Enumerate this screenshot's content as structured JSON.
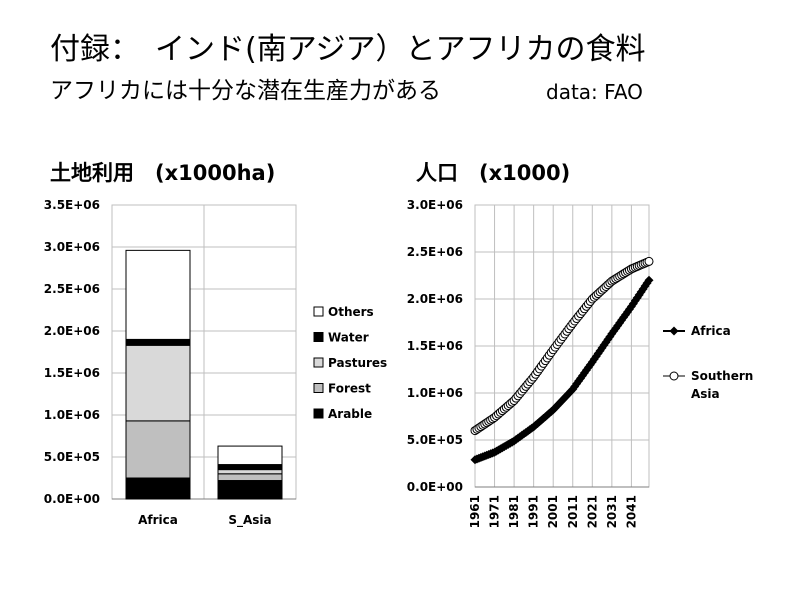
{
  "slide": {
    "title": "付録：　インド(南アジア）とアフリカの食料",
    "subtitle": "アフリカには十分な潜在生産力がある",
    "source": "data:  FAO"
  },
  "chart_data": [
    {
      "type": "bar",
      "stacked": true,
      "title": "土地利用　(x1000ha)",
      "categories": [
        "Africa",
        "S_Asia"
      ],
      "ylim": [
        0,
        3500000
      ],
      "yticks": [
        "0.0E+00",
        "5.0E+05",
        "1.0E+06",
        "1.5E+06",
        "2.0E+06",
        "2.5E+06",
        "3.0E+06",
        "3.5E+06"
      ],
      "grid": true,
      "legend_position": "right",
      "series": [
        {
          "name": "Arable",
          "color": "#000000",
          "values": [
            250000,
            220000
          ]
        },
        {
          "name": "Forest",
          "color": "#bfbfbf",
          "values": [
            680000,
            80000
          ]
        },
        {
          "name": "Pastures",
          "color": "#d9d9d9",
          "values": [
            900000,
            50000
          ]
        },
        {
          "name": "Water",
          "color": "#000000",
          "values": [
            70000,
            60000
          ]
        },
        {
          "name": "Others",
          "color": "#ffffff",
          "values": [
            1060000,
            220000
          ]
        }
      ]
    },
    {
      "type": "line",
      "title": "人口　(x1000)",
      "ylim": [
        0,
        3000000
      ],
      "yticks": [
        "0.0E+00",
        "5.0E+05",
        "1.0E+06",
        "1.5E+06",
        "2.0E+06",
        "2.5E+06",
        "3.0E+06"
      ],
      "xticks": [
        "1961",
        "1971",
        "1981",
        "1991",
        "2001",
        "2011",
        "2021",
        "2031",
        "2041"
      ],
      "x_range": [
        1961,
        2050
      ],
      "grid": true,
      "legend_position": "right",
      "series": [
        {
          "name": "Africa",
          "marker": "filled-diamond",
          "color": "#000000",
          "points": [
            [
              1961,
              290000
            ],
            [
              1971,
              370000
            ],
            [
              1981,
              490000
            ],
            [
              1991,
              640000
            ],
            [
              2001,
              820000
            ],
            [
              2011,
              1040000
            ],
            [
              2021,
              1330000
            ],
            [
              2031,
              1630000
            ],
            [
              2041,
              1920000
            ],
            [
              2050,
              2200000
            ]
          ]
        },
        {
          "name": "Southern Asia",
          "marker": "open-circle",
          "color": "#000000",
          "points": [
            [
              1961,
              600000
            ],
            [
              1971,
              740000
            ],
            [
              1981,
              920000
            ],
            [
              1991,
              1170000
            ],
            [
              2001,
              1460000
            ],
            [
              2011,
              1740000
            ],
            [
              2021,
              2000000
            ],
            [
              2031,
              2190000
            ],
            [
              2041,
              2320000
            ],
            [
              2050,
              2400000
            ]
          ]
        }
      ]
    }
  ]
}
